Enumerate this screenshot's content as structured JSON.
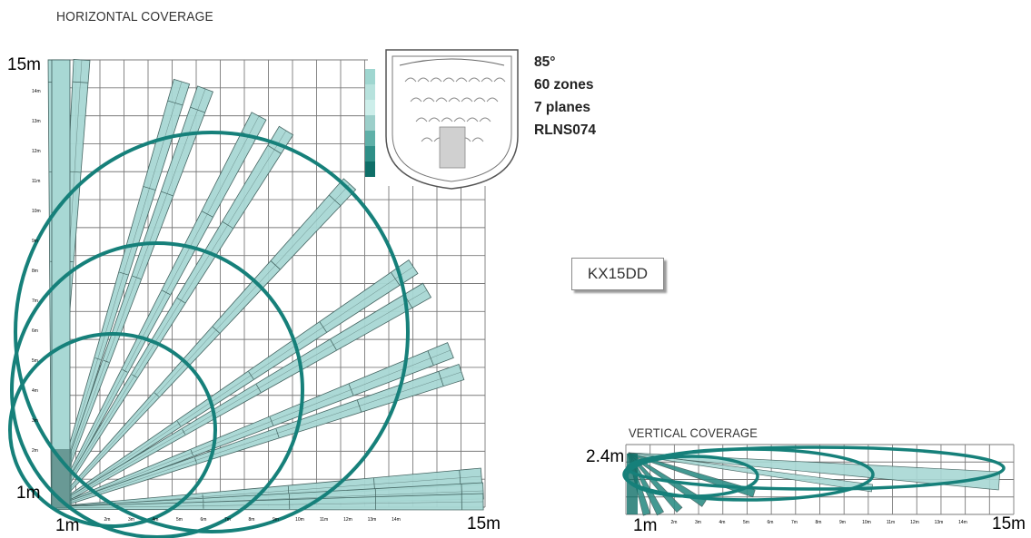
{
  "horizontal": {
    "title": "HORIZONTAL COVERAGE",
    "y_top_label": "15m",
    "y_bottom_label": "1m",
    "x_left_label": "1m",
    "x_right_label": "15m",
    "y_ticks": [
      "14m",
      "13m",
      "12m",
      "11m",
      "10m",
      "9m",
      "8m",
      "7m",
      "6m",
      "5m",
      "4m",
      "3m",
      "2m"
    ],
    "x_ticks": [
      "2m",
      "3m",
      "4m",
      "5m",
      "6m",
      "7m",
      "8m",
      "9m",
      "10m",
      "11m",
      "12m",
      "13m",
      "14m"
    ]
  },
  "specs": {
    "angle": "85°",
    "zones": "60 zones",
    "planes": "7 planes",
    "lens": "RLNS074"
  },
  "model": "KX15DD",
  "vertical": {
    "title": "VERTICAL COVERAGE",
    "height_label": "2.4m",
    "x_left_label": "1m",
    "x_right_label": "15m",
    "x_ticks": [
      "2m",
      "3m",
      "4m",
      "5m",
      "6m",
      "7m",
      "8m",
      "9m",
      "10m",
      "11m",
      "12m",
      "13m",
      "14m"
    ]
  },
  "colors": {
    "teal_dark": "#16807a",
    "teal_fill": "#a8d8d4",
    "teal_light": "#cdeeea",
    "grid": "#7a7a7a"
  }
}
